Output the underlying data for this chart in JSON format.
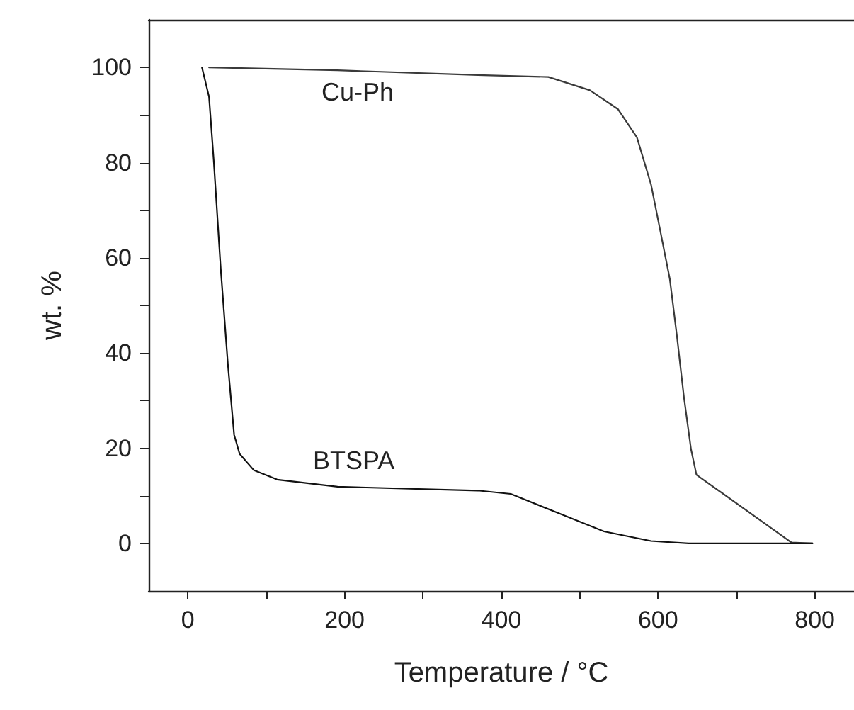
{
  "chart_data": {
    "type": "line",
    "xlabel": "Temperature / °C",
    "ylabel": "wt. %",
    "xlim": [
      -50,
      850
    ],
    "ylim": [
      -10,
      110
    ],
    "xticks": [
      0,
      {
        "value": 100,
        "label": null
      },
      200,
      {
        "value": 300,
        "label": null
      },
      400,
      {
        "value": 500,
        "label": null
      },
      600,
      {
        "value": 700,
        "label": null
      },
      800
    ],
    "yticks": [
      0,
      {
        "value": 10,
        "label": null
      },
      20,
      {
        "value": 30,
        "label": null
      },
      40,
      {
        "value": 50,
        "label": null
      },
      60,
      {
        "value": 70,
        "label": null
      },
      80,
      {
        "value": 90,
        "label": null
      },
      100
    ],
    "marker": "none",
    "line_style": "solid",
    "series": [
      {
        "color": "#3a3a3a",
        "x": [
          27,
          191,
          370,
          460,
          513,
          549,
          573,
          591,
          603,
          615,
          624,
          633,
          642,
          649,
          770,
          797
        ],
        "values": [
          100,
          99.4,
          98.4,
          98.0,
          95.2,
          91.2,
          85.3,
          75.4,
          65.5,
          55.5,
          43.6,
          30.7,
          19.8,
          14.4,
          0.2,
          0
        ]
      },
      {
        "color": "#111111",
        "x": [
          18,
          27,
          33,
          42,
          51,
          59,
          66,
          84,
          114,
          191,
          370,
          412,
          472,
          531,
          591,
          639,
          797
        ],
        "values": [
          100,
          93.8,
          80.4,
          57.5,
          37.7,
          22.8,
          18.8,
          15.4,
          13.4,
          11.9,
          11.1,
          10.4,
          6.4,
          2.5,
          0.5,
          0,
          0
        ]
      }
    ],
    "annotations": [
      "Cu-Ph",
      "BTSPA"
    ]
  }
}
